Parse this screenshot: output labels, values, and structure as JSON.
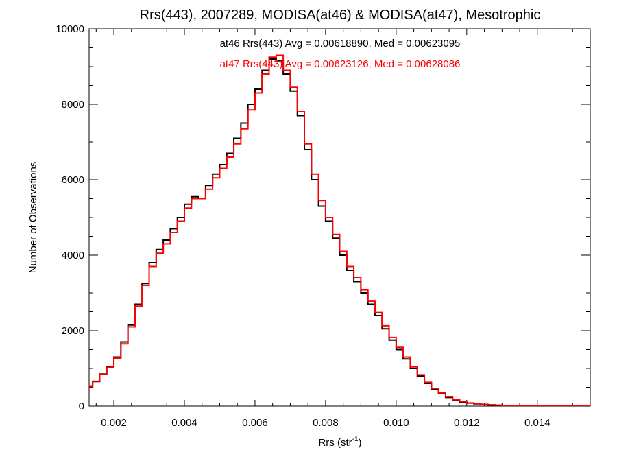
{
  "chart_data": {
    "type": "line",
    "title": "Rrs(443), 2007289, MODISA(at46) & MODISA(at47), Mesotrophic",
    "xlabel": "Rrs (str",
    "xlabel_sup": "-1",
    "xlabel_close": ")",
    "ylabel": "Number of Observations",
    "xlim": [
      0.0013,
      0.0155
    ],
    "ylim": [
      0,
      10000
    ],
    "x_ticks": [
      0.002,
      0.004,
      0.006,
      0.008,
      0.01,
      0.012,
      0.014
    ],
    "x_tick_labels": [
      "0.002",
      "0.004",
      "0.006",
      "0.008",
      "0.010",
      "0.012",
      "0.014"
    ],
    "y_ticks": [
      0,
      2000,
      4000,
      6000,
      8000,
      10000
    ],
    "y_tick_labels": [
      "0",
      "2000",
      "4000",
      "6000",
      "8000",
      "10000"
    ],
    "grid": false,
    "annotations": [
      {
        "text": "at46 Rrs(443) Avg = 0.00618890, Med = 0.00623095",
        "color": "#000000"
      },
      {
        "text": "at47 Rrs(443) Avg = 0.00623126, Med = 0.00628086",
        "color": "#ff0000"
      }
    ],
    "series": [
      {
        "color": "#000000",
        "x": [
          0.0013,
          0.0015,
          0.0017,
          0.0019,
          0.0021,
          0.0023,
          0.0025,
          0.0027,
          0.0029,
          0.0031,
          0.0033,
          0.0035,
          0.0037,
          0.0039,
          0.0041,
          0.0043,
          0.0045,
          0.0047,
          0.0049,
          0.0051,
          0.0053,
          0.0055,
          0.0057,
          0.0059,
          0.0061,
          0.0063,
          0.0065,
          0.0067,
          0.0069,
          0.0071,
          0.0073,
          0.0075,
          0.0077,
          0.0079,
          0.0081,
          0.0083,
          0.0085,
          0.0087,
          0.0089,
          0.0091,
          0.0093,
          0.0095,
          0.0097,
          0.0099,
          0.0101,
          0.0103,
          0.0105,
          0.0107,
          0.0109,
          0.0111,
          0.0113,
          0.0115,
          0.0117,
          0.0119,
          0.0121,
          0.0123,
          0.0125,
          0.0127,
          0.0129,
          0.0131,
          0.0133,
          0.0135,
          0.0137,
          0.0139,
          0.0141,
          0.0143,
          0.0145,
          0.0147,
          0.0149,
          0.0151,
          0.0153,
          0.0155
        ],
        "y": [
          500,
          650,
          850,
          1050,
          1300,
          1700,
          2150,
          2700,
          3250,
          3800,
          4150,
          4400,
          4700,
          5000,
          5350,
          5550,
          5500,
          5850,
          6150,
          6400,
          6700,
          7100,
          7500,
          8000,
          8400,
          8900,
          9200,
          9150,
          8800,
          8350,
          7700,
          6800,
          6000,
          5300,
          4900,
          4450,
          4000,
          3600,
          3300,
          3000,
          2700,
          2400,
          2050,
          1750,
          1500,
          1250,
          1000,
          800,
          600,
          450,
          330,
          230,
          160,
          110,
          80,
          60,
          45,
          30,
          22,
          15,
          10,
          8,
          6,
          5,
          4,
          3,
          2,
          2,
          1,
          1,
          1,
          1
        ]
      },
      {
        "color": "#ff0000",
        "x": [
          0.0013,
          0.0015,
          0.0017,
          0.0019,
          0.0021,
          0.0023,
          0.0025,
          0.0027,
          0.0029,
          0.0031,
          0.0033,
          0.0035,
          0.0037,
          0.0039,
          0.0041,
          0.0043,
          0.0045,
          0.0047,
          0.0049,
          0.0051,
          0.0053,
          0.0055,
          0.0057,
          0.0059,
          0.0061,
          0.0063,
          0.0065,
          0.0067,
          0.0069,
          0.0071,
          0.0073,
          0.0075,
          0.0077,
          0.0079,
          0.0081,
          0.0083,
          0.0085,
          0.0087,
          0.0089,
          0.0091,
          0.0093,
          0.0095,
          0.0097,
          0.0099,
          0.0101,
          0.0103,
          0.0105,
          0.0107,
          0.0109,
          0.0111,
          0.0113,
          0.0115,
          0.0117,
          0.0119,
          0.0121,
          0.0123,
          0.0125,
          0.0127,
          0.0129,
          0.0131,
          0.0133,
          0.0135,
          0.0137,
          0.0139,
          0.0141,
          0.0143,
          0.0145,
          0.0147,
          0.0149,
          0.0151,
          0.0153,
          0.0155
        ],
        "y": [
          520,
          660,
          840,
          1030,
          1270,
          1650,
          2100,
          2650,
          3200,
          3700,
          4050,
          4300,
          4600,
          4900,
          5250,
          5500,
          5500,
          5750,
          6050,
          6300,
          6600,
          6950,
          7350,
          7850,
          8300,
          8800,
          9250,
          9300,
          8900,
          8450,
          7800,
          6950,
          6150,
          5450,
          5000,
          4550,
          4100,
          3700,
          3400,
          3080,
          2780,
          2480,
          2130,
          1820,
          1560,
          1300,
          1040,
          830,
          630,
          470,
          350,
          250,
          170,
          120,
          85,
          65,
          48,
          33,
          24,
          17,
          11,
          9,
          7,
          5,
          4,
          3,
          2,
          2,
          1,
          1,
          1,
          1
        ]
      }
    ]
  }
}
